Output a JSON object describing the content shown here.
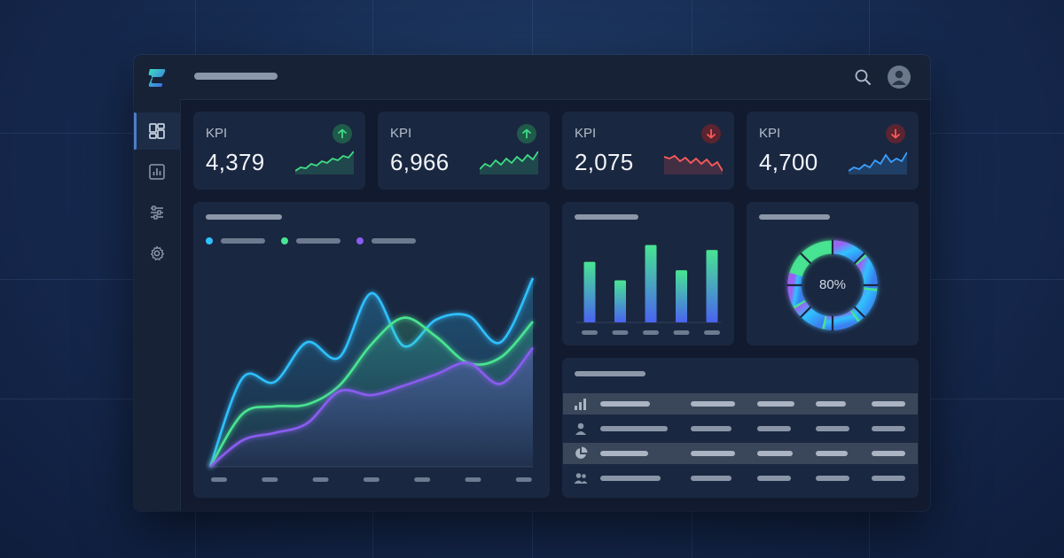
{
  "colors": {
    "accent_blue": "#2fc1ff",
    "accent_green": "#48e592",
    "accent_purple": "#8a5cf0",
    "trend_up": "#3ddc84",
    "trend_down": "#ff5a5a",
    "kpi_spark_blue": "#3aa0ff"
  },
  "header": {
    "search_icon": "search-icon",
    "avatar_icon": "user-avatar-icon"
  },
  "sidebar": {
    "items": [
      {
        "icon": "dashboard-icon",
        "active": true
      },
      {
        "icon": "bar-chart-icon",
        "active": false
      },
      {
        "icon": "sliders-icon",
        "active": false
      },
      {
        "icon": "gear-icon",
        "active": false
      }
    ]
  },
  "kpis": [
    {
      "label": "KPI",
      "value": "4,379",
      "trend": "up"
    },
    {
      "label": "KPI",
      "value": "6,966",
      "trend": "up"
    },
    {
      "label": "KPI",
      "value": "2,075",
      "trend": "down"
    },
    {
      "label": "KPI",
      "value": "4,700",
      "trend": "down"
    }
  ],
  "chart_data": [
    {
      "type": "area",
      "series": [
        {
          "color": "#2fc1ff",
          "values": [
            0,
            47,
            45,
            66,
            58,
            92,
            64,
            78,
            80,
            66,
            100
          ]
        },
        {
          "color": "#48e592",
          "values": [
            0,
            28,
            32,
            33,
            43,
            65,
            79,
            69,
            55,
            58,
            77
          ]
        },
        {
          "color": "#8a5cf0",
          "values": [
            0,
            14,
            18,
            23,
            40,
            38,
            43,
            49,
            55,
            44,
            63
          ]
        }
      ]
    },
    {
      "type": "bar",
      "series": [
        {
          "color": "#48e592",
          "values": [
            72,
            50,
            92,
            62,
            86
          ]
        }
      ]
    },
    {
      "type": "pie",
      "center_label": "80%",
      "values": [
        80,
        20
      ]
    }
  ],
  "table": {
    "rows": [
      {
        "icon": "bar-chart-icon",
        "highlighted": true
      },
      {
        "icon": "user-icon",
        "highlighted": false
      },
      {
        "icon": "pie-chart-icon",
        "highlighted": true
      },
      {
        "icon": "users-icon",
        "highlighted": false
      }
    ]
  }
}
